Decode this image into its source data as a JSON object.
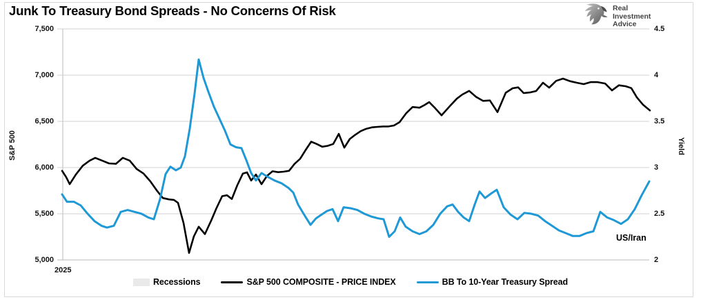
{
  "title": "Junk To Treasury Bond Spreads - No Concerns Of Risk",
  "logo": {
    "name": "Real Investment Advice",
    "lines": [
      "Real",
      "Investment",
      "Advice"
    ]
  },
  "annotation": {
    "text": "US/Iran"
  },
  "x_axis_label": "2025",
  "chart_data": {
    "type": "line",
    "title": "Junk To Treasury Bond Spreads - No Concerns Of Risk",
    "grid": "horizontal",
    "legend_position": "bottom",
    "colors": {
      "gridline": "#d9d9d9",
      "axis_line": "#c6c6c6",
      "sp500": "#000000",
      "spread": "#1f99d5",
      "recession": "#e9e9e9"
    },
    "left_axis": {
      "title": "S&P 500",
      "range": [
        5000,
        7500
      ],
      "ticks": [
        {
          "label": "7,500",
          "value": 7500
        },
        {
          "label": "7,000",
          "value": 7000
        },
        {
          "label": "6,500",
          "value": 6500
        },
        {
          "label": "6,000",
          "value": 6000
        },
        {
          "label": "5,500",
          "value": 5500
        },
        {
          "label": "5,000",
          "value": 5000
        }
      ]
    },
    "right_axis": {
      "title": "Yield",
      "range": [
        2,
        4.5
      ],
      "ticks": [
        {
          "label": "4.5",
          "value": 4.5
        },
        {
          "label": "4",
          "value": 4
        },
        {
          "label": "3.5",
          "value": 3.5
        },
        {
          "label": "3",
          "value": 3
        },
        {
          "label": "2.5",
          "value": 2.5
        },
        {
          "label": "2",
          "value": 2
        }
      ]
    },
    "x_axis": {
      "tick_labels": [
        "2025"
      ],
      "unit": "time (Jan–Jul 2025), positions stored as plot px"
    },
    "annotations": [
      {
        "text": "US/Iran"
      }
    ],
    "series": [
      {
        "name": "S&P 500 COMPOSITE - PRICE INDEX",
        "axis": "left",
        "color": "#000000",
        "width": 2.6,
        "points": [
          [
            90,
            5965
          ],
          [
            96,
            5895
          ],
          [
            101,
            5820
          ],
          [
            110,
            5925
          ],
          [
            120,
            6020
          ],
          [
            130,
            6075
          ],
          [
            138,
            6105
          ],
          [
            148,
            6075
          ],
          [
            158,
            6045
          ],
          [
            168,
            6040
          ],
          [
            178,
            6105
          ],
          [
            188,
            6075
          ],
          [
            198,
            5985
          ],
          [
            208,
            5935
          ],
          [
            218,
            5850
          ],
          [
            228,
            5745
          ],
          [
            236,
            5670
          ],
          [
            245,
            5655
          ],
          [
            252,
            5650
          ],
          [
            258,
            5618
          ],
          [
            266,
            5400
          ],
          [
            274,
            5075
          ],
          [
            281,
            5255
          ],
          [
            288,
            5360
          ],
          [
            297,
            5280
          ],
          [
            306,
            5425
          ],
          [
            314,
            5565
          ],
          [
            322,
            5690
          ],
          [
            329,
            5700
          ],
          [
            336,
            5660
          ],
          [
            344,
            5810
          ],
          [
            352,
            5935
          ],
          [
            358,
            5948
          ],
          [
            364,
            5860
          ],
          [
            371,
            5925
          ],
          [
            379,
            5820
          ],
          [
            387,
            5910
          ],
          [
            395,
            5960
          ],
          [
            403,
            5950
          ],
          [
            411,
            5955
          ],
          [
            419,
            5965
          ],
          [
            427,
            6040
          ],
          [
            435,
            6095
          ],
          [
            443,
            6190
          ],
          [
            451,
            6280
          ],
          [
            459,
            6255
          ],
          [
            467,
            6225
          ],
          [
            475,
            6235
          ],
          [
            483,
            6255
          ],
          [
            491,
            6365
          ],
          [
            499,
            6215
          ],
          [
            507,
            6310
          ],
          [
            515,
            6355
          ],
          [
            523,
            6395
          ],
          [
            531,
            6420
          ],
          [
            539,
            6435
          ],
          [
            547,
            6440
          ],
          [
            555,
            6445
          ],
          [
            563,
            6445
          ],
          [
            571,
            6455
          ],
          [
            579,
            6490
          ],
          [
            589,
            6590
          ],
          [
            598,
            6655
          ],
          [
            608,
            6648
          ],
          [
            615,
            6675
          ],
          [
            622,
            6708
          ],
          [
            631,
            6640
          ],
          [
            640,
            6565
          ],
          [
            652,
            6665
          ],
          [
            662,
            6745
          ],
          [
            670,
            6790
          ],
          [
            680,
            6830
          ],
          [
            690,
            6765
          ],
          [
            700,
            6722
          ],
          [
            710,
            6726
          ],
          [
            721,
            6600
          ],
          [
            733,
            6810
          ],
          [
            743,
            6858
          ],
          [
            751,
            6868
          ],
          [
            759,
            6806
          ],
          [
            768,
            6813
          ],
          [
            777,
            6828
          ],
          [
            787,
            6918
          ],
          [
            796,
            6865
          ],
          [
            806,
            6938
          ],
          [
            816,
            6963
          ],
          [
            826,
            6935
          ],
          [
            836,
            6918
          ],
          [
            846,
            6903
          ],
          [
            856,
            6925
          ],
          [
            866,
            6925
          ],
          [
            877,
            6910
          ],
          [
            887,
            6835
          ],
          [
            897,
            6890
          ],
          [
            907,
            6880
          ],
          [
            915,
            6860
          ],
          [
            923,
            6760
          ],
          [
            932,
            6680
          ],
          [
            942,
            6618
          ]
        ]
      },
      {
        "name": "BB To 10-Year Treasury Spread",
        "axis": "right",
        "color": "#1f99d5",
        "width": 3,
        "points": [
          [
            90,
            2.71
          ],
          [
            97,
            2.63
          ],
          [
            107,
            2.63
          ],
          [
            117,
            2.59
          ],
          [
            127,
            2.5
          ],
          [
            137,
            2.42
          ],
          [
            147,
            2.37
          ],
          [
            155,
            2.35
          ],
          [
            165,
            2.37
          ],
          [
            175,
            2.52
          ],
          [
            185,
            2.54
          ],
          [
            195,
            2.52
          ],
          [
            205,
            2.5
          ],
          [
            215,
            2.46
          ],
          [
            223,
            2.44
          ],
          [
            232,
            2.66
          ],
          [
            240,
            2.93
          ],
          [
            247,
            3.01
          ],
          [
            255,
            2.97
          ],
          [
            262,
            3.0
          ],
          [
            268,
            3.12
          ],
          [
            275,
            3.42
          ],
          [
            282,
            3.8
          ],
          [
            288,
            4.17
          ],
          [
            295,
            3.97
          ],
          [
            302,
            3.82
          ],
          [
            310,
            3.66
          ],
          [
            318,
            3.53
          ],
          [
            326,
            3.4
          ],
          [
            334,
            3.25
          ],
          [
            342,
            3.22
          ],
          [
            350,
            3.21
          ],
          [
            357,
            3.08
          ],
          [
            364,
            2.94
          ],
          [
            371,
            2.86
          ],
          [
            379,
            2.94
          ],
          [
            388,
            2.9
          ],
          [
            398,
            2.86
          ],
          [
            408,
            2.83
          ],
          [
            418,
            2.78
          ],
          [
            425,
            2.73
          ],
          [
            432,
            2.6
          ],
          [
            440,
            2.5
          ],
          [
            450,
            2.38
          ],
          [
            458,
            2.45
          ],
          [
            466,
            2.49
          ],
          [
            474,
            2.53
          ],
          [
            482,
            2.55
          ],
          [
            490,
            2.42
          ],
          [
            498,
            2.57
          ],
          [
            508,
            2.56
          ],
          [
            518,
            2.54
          ],
          [
            528,
            2.5
          ],
          [
            538,
            2.47
          ],
          [
            548,
            2.45
          ],
          [
            556,
            2.44
          ],
          [
            564,
            2.25
          ],
          [
            572,
            2.31
          ],
          [
            580,
            2.46
          ],
          [
            588,
            2.36
          ],
          [
            598,
            2.31
          ],
          [
            608,
            2.28
          ],
          [
            618,
            2.31
          ],
          [
            628,
            2.38
          ],
          [
            638,
            2.5
          ],
          [
            648,
            2.58
          ],
          [
            656,
            2.6
          ],
          [
            664,
            2.52
          ],
          [
            672,
            2.46
          ],
          [
            680,
            2.42
          ],
          [
            688,
            2.6
          ],
          [
            695,
            2.74
          ],
          [
            703,
            2.67
          ],
          [
            712,
            2.72
          ],
          [
            720,
            2.76
          ],
          [
            730,
            2.57
          ],
          [
            740,
            2.49
          ],
          [
            750,
            2.44
          ],
          [
            760,
            2.51
          ],
          [
            770,
            2.5
          ],
          [
            780,
            2.48
          ],
          [
            790,
            2.42
          ],
          [
            800,
            2.37
          ],
          [
            810,
            2.32
          ],
          [
            820,
            2.29
          ],
          [
            830,
            2.26
          ],
          [
            840,
            2.26
          ],
          [
            850,
            2.29
          ],
          [
            860,
            2.31
          ],
          [
            870,
            2.52
          ],
          [
            880,
            2.46
          ],
          [
            890,
            2.43
          ],
          [
            900,
            2.39
          ],
          [
            910,
            2.44
          ],
          [
            920,
            2.55
          ],
          [
            930,
            2.7
          ],
          [
            941,
            2.85
          ]
        ]
      }
    ],
    "legend": [
      {
        "type": "box",
        "label": "Recessions",
        "color": "#e9e9e9"
      },
      {
        "type": "line",
        "label": "S&P 500 COMPOSITE - PRICE INDEX",
        "color": "#000000"
      },
      {
        "type": "line",
        "label": "BB To 10-Year Treasury Spread",
        "color": "#1f99d5"
      }
    ]
  }
}
